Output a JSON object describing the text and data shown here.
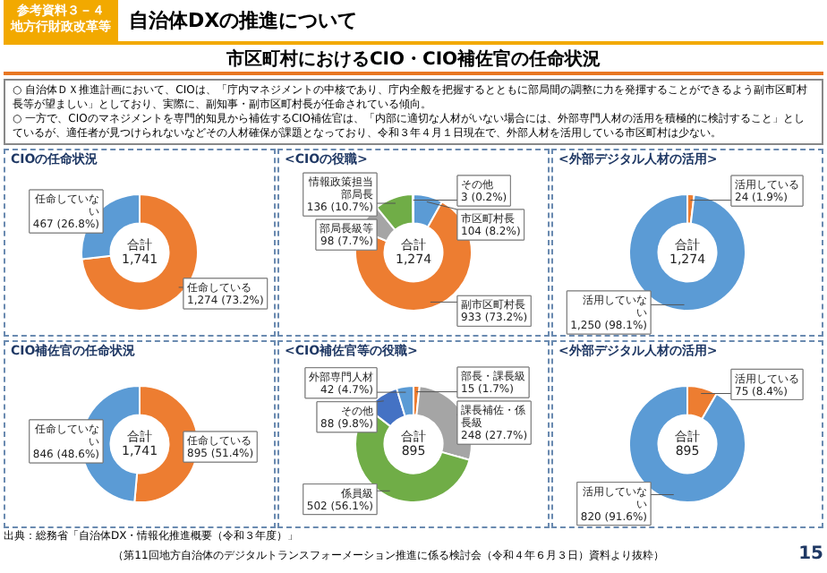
{
  "chart_data": [
    {
      "type": "other",
      "title": "市区町村におけるCIO・CIO補佐官の任命状況",
      "annotations": [
        "参考資料３－４",
        "地方行財政改革等",
        "自治体DXの推進について",
        "○ 自治体ＤＸ推進計画において、CIOは、「庁内マネジメントの中核であり、庁内全般を把握するとともに部局間の調整に力を発揮することができるよう副市区町村長等が望ましい」としており、実際に、副知事・副市区町村長が任命されている傾向。",
        "○ 一方で、CIOのマネジメントを専門的知見から補佐するCIO補佐官は、「内部に適切な人材がいない場合には、外部専門人材の活用を積極的に検討すること」としているが、適任者が見つけられないなどその人材確保が課題となっており、令和３年４月１日現在で、外部人材を活用している市区町村は少ない。",
        "出典：総務省「自治体DX・情報化推進概要（令和３年度）」",
        "（第11回地方自治体のデジタルトランスフォーメーション推進に係る検討会（令和４年６月３日）資料より抜粋）",
        "15"
      ]
    },
    {
      "type": "donut",
      "title": "CIOの任命状況",
      "categories": [
        "任命している",
        "任命していない"
      ],
      "values": [
        1274,
        467
      ],
      "colors": [
        "#ed7d31",
        "#5b9bd5"
      ],
      "value_labels": [
        "1,274 (73.2%)",
        "467 (26.8%)"
      ],
      "annotations": [
        "合計 1,741"
      ]
    },
    {
      "type": "donut",
      "title": "<CIOの役職>",
      "categories": [
        "市区町村長",
        "副市区町村長",
        "部局長級等",
        "情報政策担当部局長",
        "その他"
      ],
      "values": [
        104,
        933,
        98,
        136,
        3
      ],
      "colors": [
        "#5b9bd5",
        "#ed7d31",
        "#a5a5a5",
        "#70ad47",
        "#4472c4"
      ],
      "value_labels": [
        "104 (8.2%)",
        "933 (73.2%)",
        "98 (7.7%)",
        "136 (10.7%)",
        "3 (0.2%)"
      ],
      "annotations": [
        "合計 1,274"
      ]
    },
    {
      "type": "donut",
      "title": "<外部デジタル人材の活用>",
      "categories": [
        "活用している",
        "活用していない"
      ],
      "values": [
        24,
        1250
      ],
      "colors": [
        "#ed7d31",
        "#5b9bd5"
      ],
      "value_labels": [
        "24 (1.9%)",
        "1,250 (98.1%)"
      ],
      "annotations": [
        "合計 1,274"
      ]
    },
    {
      "type": "donut",
      "title": "CIO補佐官の任命状況",
      "categories": [
        "任命している",
        "任命していない"
      ],
      "values": [
        895,
        846
      ],
      "colors": [
        "#ed7d31",
        "#5b9bd5"
      ],
      "value_labels": [
        "895 (51.4%)",
        "846 (48.6%)"
      ],
      "annotations": [
        "合計 1,741"
      ]
    },
    {
      "type": "donut",
      "title": "<CIO補佐官等の役職>",
      "categories": [
        "部長・課長級",
        "課長補佐・係長級",
        "係員級",
        "その他",
        "外部専門人材"
      ],
      "values": [
        15,
        248,
        502,
        88,
        42
      ],
      "colors": [
        "#ed7d31",
        "#a5a5a5",
        "#70ad47",
        "#4472c4",
        "#5b9bd5"
      ],
      "value_labels": [
        "15 (1.7%)",
        "248 (27.7%)",
        "502 (56.1%)",
        "88 (9.8%)",
        "42 (4.7%)"
      ],
      "annotations": [
        "合計 895"
      ]
    },
    {
      "type": "donut",
      "title": "<外部デジタル人材の活用>",
      "categories": [
        "活用している",
        "活用していない"
      ],
      "values": [
        75,
        820
      ],
      "colors": [
        "#ed7d31",
        "#5b9bd5"
      ],
      "value_labels": [
        "75 (8.4%)",
        "820 (91.6%)"
      ],
      "annotations": [
        "合計 895"
      ]
    }
  ]
}
